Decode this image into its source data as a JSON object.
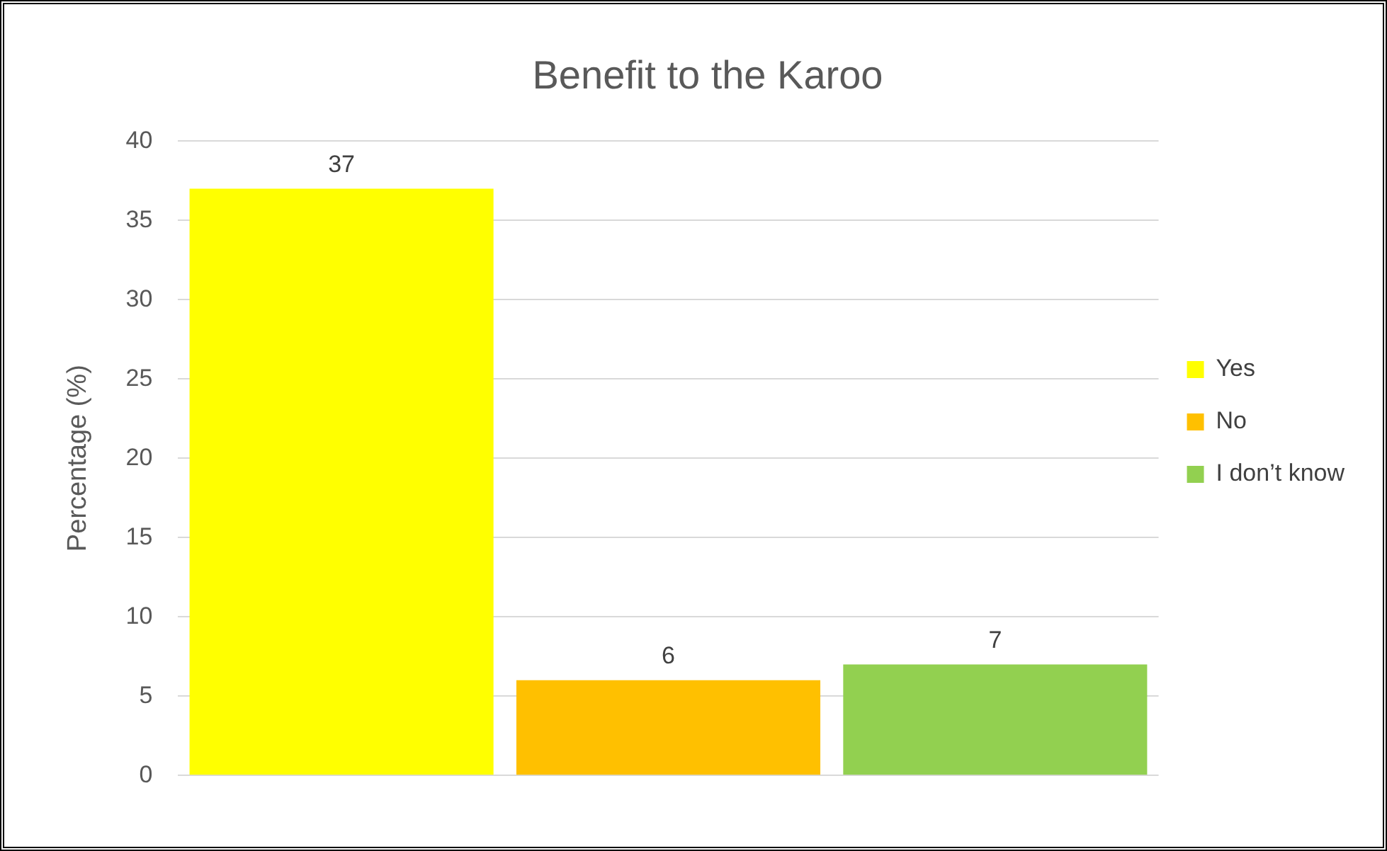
{
  "chart_data": {
    "type": "bar",
    "title": "Benefit to the Karoo",
    "ylabel": "Percentage (%)",
    "categories": [
      null,
      null,
      null
    ],
    "series": [
      {
        "name": "Yes",
        "color": "#ffff00",
        "values": [
          37,
          null,
          null
        ]
      },
      {
        "name": "No",
        "color": "#ffc000",
        "values": [
          null,
          6,
          null
        ]
      },
      {
        "name": "I don’t know",
        "color": "#92d050",
        "values": [
          null,
          null,
          7
        ]
      }
    ],
    "ylim": [
      0,
      40
    ],
    "yticks": [
      0,
      5,
      10,
      15,
      20,
      25,
      30,
      35,
      40
    ],
    "grid": "y",
    "legend": "right",
    "data_labels": true
  }
}
